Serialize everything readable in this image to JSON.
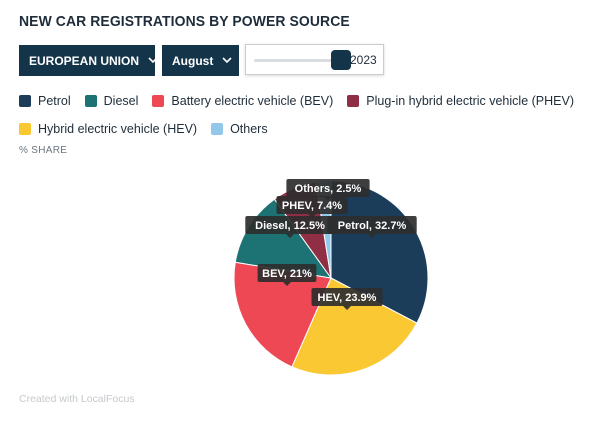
{
  "title": "NEW CAR REGISTRATIONS BY POWER SOURCE",
  "controls": {
    "region": "EUROPEAN UNION",
    "month": "August",
    "year": "2023",
    "year_slider_fraction": 1.0
  },
  "share_label": "% SHARE",
  "footer": "Created with LocalFocus",
  "legend": [
    {
      "label": "Petrol",
      "color": "#1c3d5a"
    },
    {
      "label": "Diesel",
      "color": "#1d7374"
    },
    {
      "label": "Battery electric vehicle (BEV)",
      "color": "#ef4855"
    },
    {
      "label": "Plug-in hybrid electric vehicle (PHEV)",
      "color": "#8f2e45"
    },
    {
      "label": "Hybrid electric vehicle (HEV)",
      "color": "#f9c833"
    },
    {
      "label": "Others",
      "color": "#93c8ea"
    }
  ],
  "chart_data": {
    "type": "pie",
    "title": "NEW CAR REGISTRATIONS BY POWER SOURCE",
    "unit": "% SHARE",
    "start": "12 o'clock, clockwise",
    "slices": [
      {
        "name": "Petrol",
        "value": 32.7,
        "label": "Petrol, 32.7%",
        "color": "#1c3d5a"
      },
      {
        "name": "HEV",
        "value": 23.9,
        "label": "HEV, 23.9%",
        "color": "#f9c833"
      },
      {
        "name": "BEV",
        "value": 21,
        "label": "BEV, 21%",
        "color": "#ef4855"
      },
      {
        "name": "Diesel",
        "value": 12.5,
        "label": "Diesel, 12.5%",
        "color": "#1d7374"
      },
      {
        "name": "PHEV",
        "value": 7.4,
        "label": "PHEV, 7.4%",
        "color": "#8f2e45"
      },
      {
        "name": "Others",
        "value": 2.5,
        "label": "Others, 2.5%",
        "color": "#93c8ea"
      }
    ]
  }
}
